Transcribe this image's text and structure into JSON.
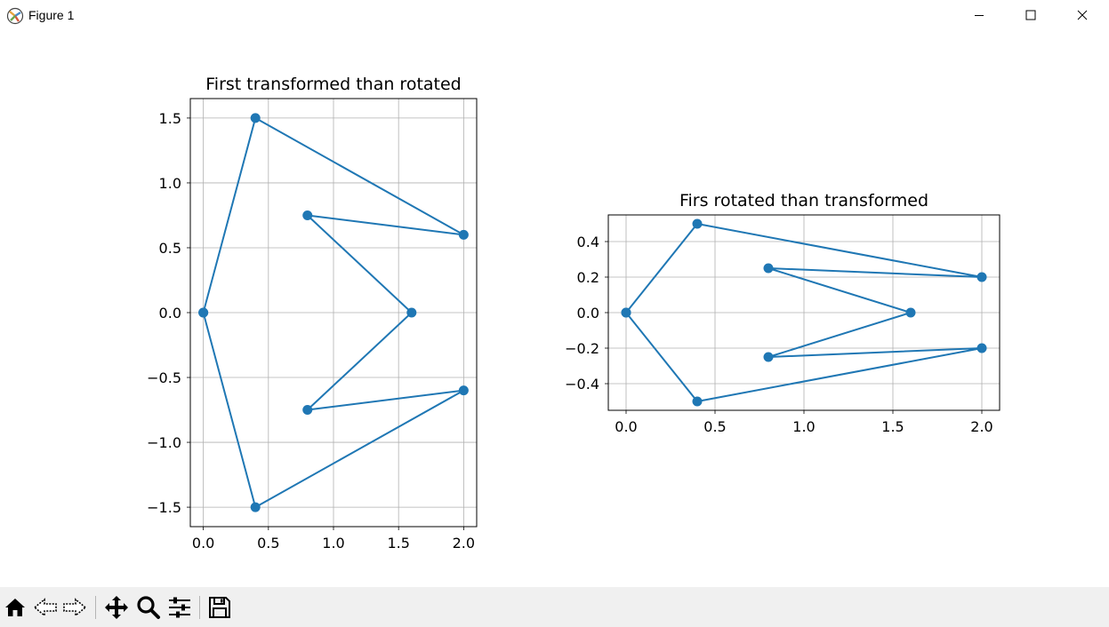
{
  "window": {
    "title": "Figure 1",
    "controls": {
      "minimize_icon": "minimize-icon",
      "maximize_icon": "maximize-icon",
      "close_icon": "close-icon"
    }
  },
  "toolbar": {
    "tools": [
      {
        "name": "home-icon",
        "label": "Home"
      },
      {
        "name": "back-icon",
        "label": "Back"
      },
      {
        "name": "forward-icon",
        "label": "Forward"
      },
      {
        "name": "pan-icon",
        "label": "Pan"
      },
      {
        "name": "zoom-icon",
        "label": "Zoom"
      },
      {
        "name": "configure-subplots-icon",
        "label": "Subplots"
      },
      {
        "name": "save-icon",
        "label": "Save"
      }
    ]
  },
  "colors": {
    "line": "#1f77b4",
    "grid": "#b0b0b0",
    "toolbar": "#f0f0f0"
  },
  "chart_data": [
    {
      "type": "line",
      "title": "First transformed than rotated",
      "xlabel": "",
      "ylabel": "",
      "xlim": [
        -0.1,
        2.1
      ],
      "ylim": [
        -1.65,
        1.65
      ],
      "xticks": [
        0.0,
        0.5,
        1.0,
        1.5,
        2.0
      ],
      "xtick_labels": [
        "0.0",
        "0.5",
        "1.0",
        "1.5",
        "2.0"
      ],
      "yticks": [
        1.5,
        1.0,
        0.5,
        0.0,
        -0.5,
        -1.0,
        -1.5
      ],
      "ytick_labels": [
        "1.5",
        "1.0",
        "0.5",
        "0.0",
        "−0.5",
        "−1.0",
        "−1.5"
      ],
      "grid": true,
      "x": [
        0,
        0.4,
        2.0,
        0.8,
        1.6,
        0.8,
        2.0,
        0.4,
        0
      ],
      "y": [
        0,
        1.5,
        0.6,
        0.75,
        0,
        -0.75,
        -0.6,
        -1.5,
        0
      ]
    },
    {
      "type": "line",
      "title": "Firs rotated than transformed",
      "xlabel": "",
      "ylabel": "",
      "xlim": [
        -0.1,
        2.1
      ],
      "ylim": [
        -0.55,
        0.55
      ],
      "xticks": [
        0.0,
        0.5,
        1.0,
        1.5,
        2.0
      ],
      "xtick_labels": [
        "0.0",
        "0.5",
        "1.0",
        "1.5",
        "2.0"
      ],
      "yticks": [
        0.4,
        0.2,
        0.0,
        -0.2,
        -0.4
      ],
      "ytick_labels": [
        "0.4",
        "0.2",
        "0.0",
        "−0.2",
        "−0.4"
      ],
      "grid": true,
      "x": [
        0,
        0.4,
        2.0,
        0.8,
        1.6,
        0.8,
        2.0,
        0.4,
        0
      ],
      "y": [
        0,
        0.5,
        0.2,
        0.25,
        0,
        -0.25,
        -0.2,
        -0.5,
        0
      ]
    }
  ]
}
